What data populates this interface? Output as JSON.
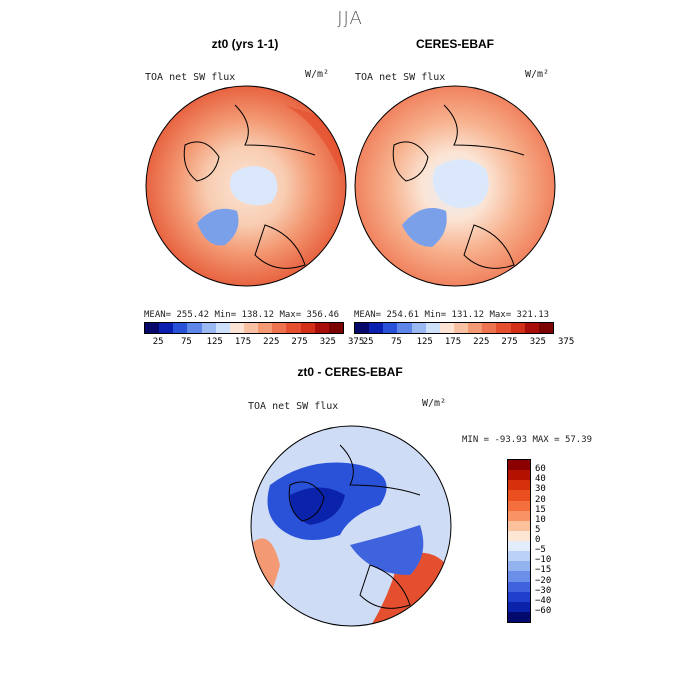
{
  "season": "JJA",
  "panels": {
    "model": {
      "title": "zt0 (yrs 1-1)",
      "variable": "TOA net SW flux",
      "units": "W/m²",
      "stats": "MEAN= 255.42   Min= 138.12   Max= 356.46"
    },
    "obs": {
      "title": "CERES-EBAF",
      "variable": "TOA net SW flux",
      "units": "W/m²",
      "stats": "MEAN= 254.61   Min= 131.12   Max= 321.13"
    },
    "diff": {
      "title": "zt0 - CERES-EBAF",
      "variable": "TOA net SW flux",
      "units": "W/m²",
      "stats": "MIN = -93.93 MAX =  57.39"
    }
  },
  "abs_colorbar": {
    "colors": [
      "#08086b",
      "#0b1fb0",
      "#2a52d8",
      "#5d86e8",
      "#9ab9f2",
      "#cfe0fa",
      "#fbe4d4",
      "#f7c2a4",
      "#f39a74",
      "#ee7350",
      "#e4502f",
      "#d12f18",
      "#a80f0a",
      "#7a0504"
    ],
    "tick_labels": [
      "25",
      "75",
      "125",
      "175",
      "225",
      "275",
      "325",
      "375"
    ]
  },
  "diff_colorbar": {
    "colors": [
      "#8b0000",
      "#b31200",
      "#d6300c",
      "#ea4f1f",
      "#f46f3e",
      "#f99366",
      "#fbc19d",
      "#fde6d4",
      "#e3ecfb",
      "#bcd1f6",
      "#93b2f0",
      "#6b8ee8",
      "#3f63dd",
      "#1f40cc",
      "#0a23aa",
      "#04096e"
    ],
    "tick_labels": [
      "60",
      "40",
      "30",
      "20",
      "15",
      "10",
      "5",
      "0",
      "−5",
      "−10",
      "−15",
      "−20",
      "−30",
      "−40",
      "−60"
    ]
  }
}
